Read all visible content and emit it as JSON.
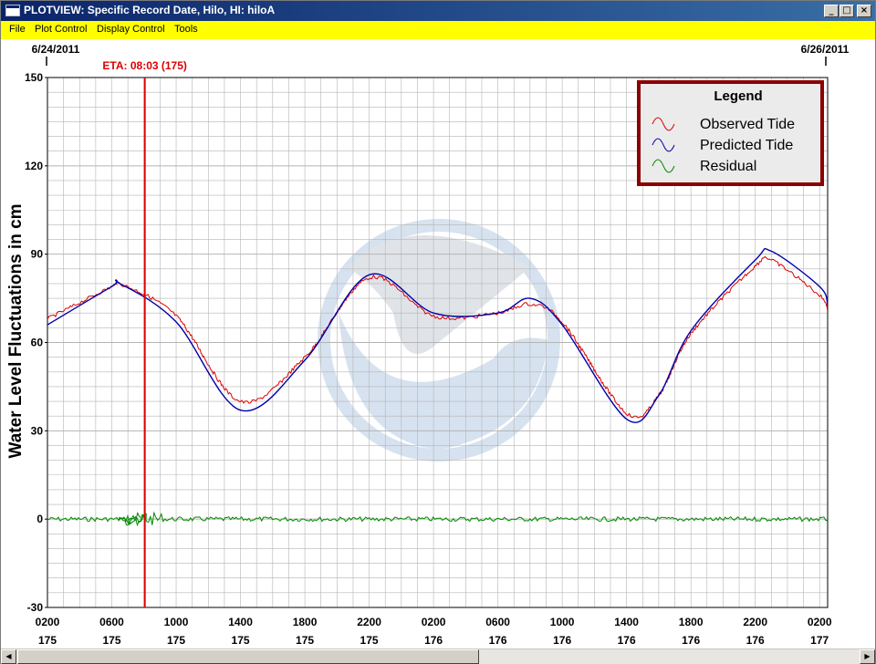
{
  "window": {
    "title": "PLOTVIEW: Specific Record Date, Hilo, HI: hiloA",
    "minimize_glyph": "_",
    "maximize_glyph": "□",
    "close_glyph": "×"
  },
  "menu": {
    "items": [
      "File",
      "Plot Control",
      "Display Control",
      "Tools"
    ]
  },
  "scrollbar": {
    "left_glyph": "◀",
    "right_glyph": "▶",
    "position": 0.0,
    "visible_fraction": 0.55
  },
  "colors": {
    "observed": "#dd0000",
    "predicted": "#0000aa",
    "residual": "#008800",
    "eta_line": "#dd0000",
    "legend_border": "#8b0000",
    "legend_fill": "#ebebeb",
    "grid": "#b4b4b4",
    "watermark": "#b8cce4"
  },
  "chart_data": {
    "type": "line",
    "ylabel": "Water Level Fluctuations in cm",
    "ylim": [
      -30,
      150
    ],
    "y_ticks": [
      -30,
      0,
      30,
      60,
      90,
      120,
      150
    ],
    "xlim": [
      "2011-06-24 02:00",
      "2011-06-26 02:30"
    ],
    "x_ticks": [
      {
        "time": "0200",
        "day": "175"
      },
      {
        "time": "0600",
        "day": "175"
      },
      {
        "time": "1000",
        "day": "175"
      },
      {
        "time": "1400",
        "day": "175"
      },
      {
        "time": "1800",
        "day": "175"
      },
      {
        "time": "2200",
        "day": "175"
      },
      {
        "time": "0200",
        "day": "176"
      },
      {
        "time": "0600",
        "day": "176"
      },
      {
        "time": "1000",
        "day": "176"
      },
      {
        "time": "1400",
        "day": "176"
      },
      {
        "time": "1800",
        "day": "176"
      },
      {
        "time": "2200",
        "day": "176"
      },
      {
        "time": "0200",
        "day": "177"
      }
    ],
    "x_tick_positions": [
      "2011-06-24 02:00",
      "2011-06-24 06:00",
      "2011-06-24 10:00",
      "2011-06-24 14:00",
      "2011-06-24 18:00",
      "2011-06-24 22:00",
      "2011-06-25 02:00",
      "2011-06-25 06:00",
      "2011-06-25 10:00",
      "2011-06-25 14:00",
      "2011-06-25 18:00",
      "2011-06-25 22:00",
      "2011-06-26 02:00"
    ],
    "date_start": "6/24/2011",
    "date_end": "6/26/2011",
    "eta_label": "ETA: 08:03 (175)",
    "eta_time": "2011-06-24 08:03",
    "grid": true,
    "legend": {
      "title": "Legend",
      "placement": "top-right",
      "entries": [
        "Observed Tide",
        "Predicted Tide",
        "Residual"
      ]
    },
    "series": [
      {
        "name": "Predicted Tide",
        "x": [
          "2011-06-24 02:00",
          "2011-06-24 06:00",
          "2011-06-24 06:30",
          "2011-06-24 10:00",
          "2011-06-24 14:00",
          "2011-06-24 18:00",
          "2011-06-24 22:00",
          "2011-06-25 02:00",
          "2011-06-25 06:00",
          "2011-06-25 08:00",
          "2011-06-25 10:00",
          "2011-06-25 14:00",
          "2011-06-25 16:00",
          "2011-06-25 18:00",
          "2011-06-25 22:00",
          "2011-06-25 23:00",
          "2011-06-26 02:00",
          "2011-06-26 02:30"
        ],
        "y": [
          66,
          79,
          80,
          67,
          37,
          54,
          83,
          70,
          70,
          75,
          66,
          34,
          42,
          64,
          88,
          91,
          79,
          73
        ]
      },
      {
        "name": "Observed Tide",
        "x": [
          "2011-06-24 02:00",
          "2011-06-24 06:00",
          "2011-06-24 06:30",
          "2011-06-24 10:00",
          "2011-06-24 14:00",
          "2011-06-24 18:00",
          "2011-06-24 22:00",
          "2011-06-25 02:00",
          "2011-06-25 06:00",
          "2011-06-25 08:00",
          "2011-06-25 10:00",
          "2011-06-25 14:00",
          "2011-06-25 16:00",
          "2011-06-25 18:00",
          "2011-06-25 22:00",
          "2011-06-25 23:00",
          "2011-06-26 02:00",
          "2011-06-26 02:30"
        ],
        "y": [
          68,
          79,
          80,
          69,
          40,
          55,
          82,
          69,
          70,
          73,
          67,
          36,
          42,
          63,
          86,
          88,
          76,
          71
        ]
      },
      {
        "name": "Residual",
        "x": [
          "2011-06-24 02:00",
          "2011-06-24 08:03",
          "2011-06-24 08:30",
          "2011-06-25 14:00",
          "2011-06-26 02:30"
        ],
        "y": [
          0,
          0,
          0,
          0,
          0
        ]
      }
    ]
  }
}
